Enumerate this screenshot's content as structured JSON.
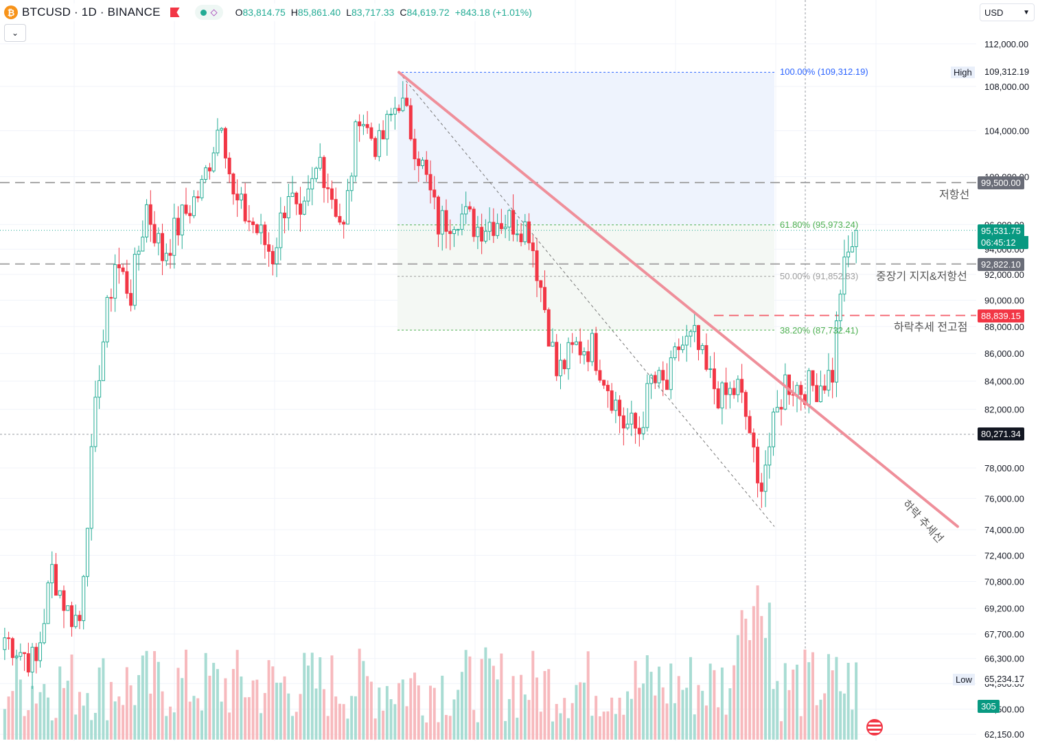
{
  "header": {
    "coin_icon": "bitcoin-icon",
    "coin_glyph": "₿",
    "symbol": "BTCUSD · 1D · BINANCE",
    "ohlc": {
      "o_label": "O",
      "o_value": "83,814.75",
      "h_label": "H",
      "h_value": "85,861.40",
      "l_label": "L",
      "l_value": "83,717.33",
      "c_label": "C",
      "c_value": "84,619.72",
      "change": "+843.18 (+1.01%)"
    }
  },
  "currency": {
    "value": "USD"
  },
  "colors": {
    "up": "#22ab94",
    "down": "#f23645",
    "up_vol": "#a8dcd3",
    "down_vol": "#f7b9bd",
    "trendline": "#ef8f9a",
    "fib_blue": "#2962ff",
    "fib_green": "#4caf50",
    "fib_gray": "#9e9e9e",
    "dashed_gray": "#9e9e9e",
    "dashed_red": "#f23645",
    "price_box_green": "#089981",
    "dark_box": "#131722"
  },
  "chart_data": {
    "type": "candlestick",
    "interval": "1D",
    "y_axis": {
      "scale": "log",
      "range": [
        61900,
        113500
      ],
      "ticks": [
        "112,000.00",
        "108,000.00",
        "104,000.00",
        "100,000.00",
        "96,000.00",
        "94,000.00",
        "92,000.00",
        "90,000.00",
        "88,000.00",
        "86,000.00",
        "84,000.00",
        "82,000.00",
        "78,000.00",
        "76,000.00",
        "74,000.00",
        "72,400.00",
        "70,800.00",
        "69,200.00",
        "67,700.00",
        "66,300.00",
        "64,900.00",
        "63,500.00",
        "62,150.00"
      ]
    },
    "keypoints": [
      [
        0,
        67500
      ],
      [
        8,
        66000
      ],
      [
        12,
        71500
      ],
      [
        16,
        69000
      ],
      [
        19,
        68500
      ],
      [
        24,
        85000
      ],
      [
        28,
        93000
      ],
      [
        32,
        90500
      ],
      [
        36,
        97500
      ],
      [
        40,
        93500
      ],
      [
        45,
        96500
      ],
      [
        50,
        99000
      ],
      [
        55,
        105500
      ],
      [
        58,
        98000
      ],
      [
        63,
        96000
      ],
      [
        68,
        93500
      ],
      [
        72,
        99000
      ],
      [
        75,
        95500
      ],
      [
        80,
        101500
      ],
      [
        86,
        95500
      ],
      [
        90,
        106000
      ],
      [
        92,
        104000
      ],
      [
        95,
        102500
      ],
      [
        100,
        107000
      ],
      [
        105,
        102000
      ],
      [
        110,
        96000
      ],
      [
        115,
        97000
      ],
      [
        120,
        95800
      ],
      [
        125,
        96500
      ],
      [
        130,
        96200
      ],
      [
        133,
        95700
      ],
      [
        137,
        89500
      ],
      [
        140,
        84500
      ],
      [
        145,
        86500
      ],
      [
        149,
        86500
      ],
      [
        152,
        84500
      ],
      [
        157,
        81000
      ],
      [
        161,
        80500
      ],
      [
        164,
        84000
      ],
      [
        168,
        83500
      ],
      [
        171,
        86500
      ],
      [
        175,
        87000
      ],
      [
        178,
        84500
      ],
      [
        182,
        82700
      ],
      [
        186,
        83500
      ],
      [
        189,
        80500
      ],
      [
        191,
        76500
      ],
      [
        194,
        79500
      ],
      [
        198,
        84000
      ],
      [
        202,
        83500
      ],
      [
        206,
        83700
      ],
      [
        210,
        84600
      ],
      [
        212,
        91000
      ],
      [
        214,
        93500
      ],
      [
        216,
        95500
      ]
    ],
    "candles_total": 217,
    "last_close": 95531.75,
    "high": 109312.19,
    "low": 65234.17,
    "fibonacci": [
      {
        "pct": "100.00%",
        "price": 109312.19,
        "label": "100.00% (109,312.19)"
      },
      {
        "pct": "61.80%",
        "price": 95973.24,
        "label": "61.80% (95,973.24)"
      },
      {
        "pct": "50.00%",
        "price": 91852.83,
        "label": "50.00% (91,852.83)"
      },
      {
        "pct": "38.20%",
        "price": 87732.41,
        "label": "38.20% (87,732.41)"
      }
    ],
    "horizontal_lines": [
      {
        "price": 99500.0,
        "label": "저항선",
        "price_label": "99,500.00",
        "style": "dashed-gray"
      },
      {
        "price": 92822.1,
        "label": "중장기 지지&저항선",
        "price_label": "92,822.10",
        "style": "dashed-gray"
      },
      {
        "price": 88839.15,
        "label": "하락추세 전고점",
        "price_label": "88,839.15",
        "style": "dashed-red"
      }
    ],
    "trendline": {
      "label": "하락 추세선",
      "from_price": 109312.19,
      "to_price": 74200
    },
    "crosshair": {
      "price": 80271.34,
      "price_label": "80,271.34"
    },
    "price_tags": {
      "last": "95,531.75",
      "countdown": "06:45:12",
      "high_label": "High",
      "high_value": "109,312.19",
      "low_label": "Low",
      "low_value": "65,234.17",
      "volume": "305"
    }
  }
}
